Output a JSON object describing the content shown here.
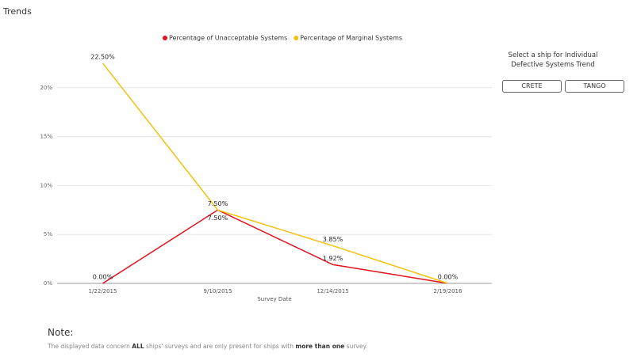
{
  "header": {
    "title": "Trends"
  },
  "chart_data": {
    "type": "line",
    "categories": [
      "1/22/2015",
      "9/10/2015",
      "12/14/2015",
      "2/19/2016"
    ],
    "x_label": "Survey Date",
    "series": [
      {
        "name": "Percentage of Unacceptable Systems",
        "color": "#e3101b",
        "values": [
          0,
          7.5,
          1.92,
          0
        ],
        "value_labels": [
          "0.00%",
          "7.50%",
          "1.92%",
          null
        ]
      },
      {
        "name": "Percentage of Marginal Systems",
        "color": "#f2c10f",
        "values": [
          22.5,
          7.5,
          3.85,
          0
        ],
        "value_labels": [
          "22.50%",
          "7.50%",
          "3.85%",
          "0.00%"
        ]
      }
    ],
    "ylim": [
      0,
      25
    ],
    "yticks": [
      {
        "value": 0,
        "label": "0%"
      },
      {
        "value": 5,
        "label": "5%"
      },
      {
        "value": 10,
        "label": "10%"
      },
      {
        "value": 15,
        "label": "15%"
      },
      {
        "value": 20,
        "label": "20%"
      }
    ],
    "grid": true,
    "legend": "top"
  },
  "ship_selector": {
    "prompt": "Select a ship for Individual Defective Systems Trend",
    "buttons": [
      "CRETE",
      "TANGO"
    ]
  },
  "note": {
    "title": "Note:",
    "parts": [
      "The displayed data concern ",
      "ALL",
      " ships' surveys and are only present for ships with ",
      "more than one",
      " survey."
    ]
  }
}
